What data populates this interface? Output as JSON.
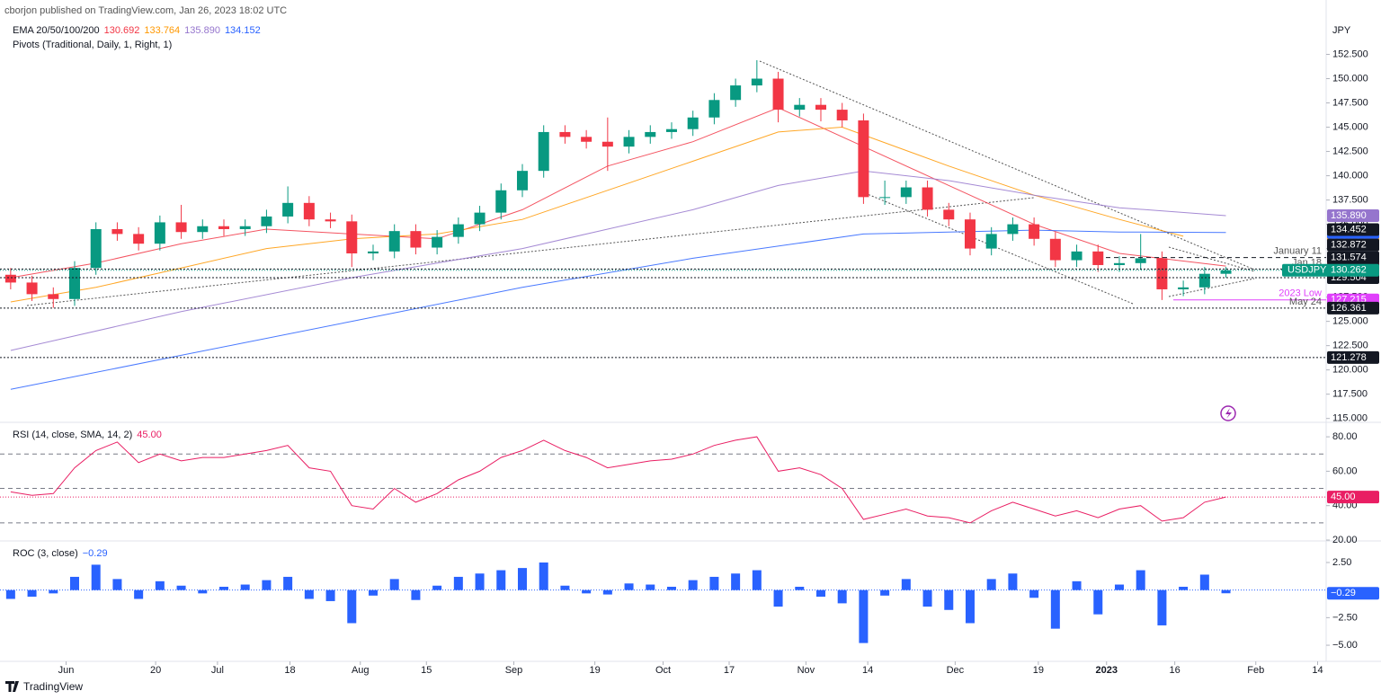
{
  "header": {
    "published": "cborjon published on TradingView.com, Jan 26, 2023 18:02 UTC",
    "currency": "JPY",
    "ema_label": "EMA 20/50/100/200",
    "pivots_label": "Pivots (Traditional, Daily, 1, Right, 1)",
    "brand": "TradingView"
  },
  "chart_data": [
    {
      "type": "candlestick",
      "xlim": [
        -0.5,
        61.7
      ],
      "ylim": [
        114.6,
        158.1
      ],
      "yticks": [
        {
          "value": 152.5,
          "label": "152.500"
        },
        {
          "value": 150,
          "label": "150.000"
        },
        {
          "value": 147.5,
          "label": "147.500"
        },
        {
          "value": 145,
          "label": "145.000"
        },
        {
          "value": 142.5,
          "label": "142.500"
        },
        {
          "value": 140,
          "label": "140.000"
        },
        {
          "value": 137.5,
          "label": "137.500"
        },
        {
          "value": 135,
          "label": "135.000"
        },
        {
          "value": 132.5,
          "label": "132.500"
        },
        {
          "value": 130,
          "label": "130.000"
        },
        {
          "value": 127.5,
          "label": "127.500"
        },
        {
          "value": 125,
          "label": "125.000"
        },
        {
          "value": 122.5,
          "label": "122.500"
        },
        {
          "value": 120,
          "label": "120.000"
        },
        {
          "value": 117.5,
          "label": "117.500"
        },
        {
          "value": 115,
          "label": "115.000"
        }
      ],
      "up_color": "#089981",
      "down_color": "#f23645",
      "open": [
        129.8,
        129.0,
        127.8,
        127.3,
        130.5,
        134.5,
        134.0,
        133.0,
        135.2,
        134.2,
        134.8,
        134.5,
        134.8,
        135.8,
        137.2,
        135.5,
        135.3,
        132.0,
        132.2,
        134.3,
        132.6,
        133.7,
        135.0,
        136.2,
        138.5,
        140.5,
        144.5,
        144.0,
        143.5,
        143.0,
        144.0,
        144.5,
        144.8,
        146.0,
        147.8,
        149.3,
        150.0,
        146.8,
        147.3,
        146.8,
        145.7,
        137.8,
        137.8,
        138.8,
        136.5,
        135.5,
        132.5,
        134.0,
        135.0,
        133.5,
        131.3,
        132.2,
        130.8,
        131.0,
        131.5,
        128.3,
        128.5,
        129.9
      ],
      "high": [
        130.5,
        129.7,
        128.5,
        131.2,
        135.2,
        135.2,
        134.7,
        135.9,
        137.0,
        135.5,
        135.5,
        135.5,
        136.5,
        138.9,
        137.9,
        136.2,
        136.0,
        132.9,
        135.0,
        135.0,
        134.4,
        135.7,
        136.9,
        139.2,
        141.2,
        145.2,
        145.2,
        144.7,
        146.0,
        144.7,
        145.2,
        145.5,
        146.7,
        148.5,
        150.0,
        151.9,
        150.7,
        148.0,
        148.0,
        147.5,
        146.4,
        139.5,
        139.5,
        139.5,
        137.2,
        136.2,
        134.7,
        135.7,
        135.7,
        134.2,
        132.9,
        132.9,
        131.7,
        134.0,
        132.2,
        129.2,
        130.6,
        130.6
      ],
      "low": [
        128.3,
        127.1,
        126.4,
        126.6,
        129.8,
        133.3,
        132.3,
        132.3,
        133.5,
        133.5,
        133.8,
        133.8,
        134.1,
        135.1,
        134.8,
        134.6,
        130.6,
        131.3,
        131.5,
        131.9,
        131.9,
        133.0,
        134.3,
        135.5,
        137.8,
        139.8,
        143.3,
        142.8,
        140.5,
        142.3,
        143.3,
        143.8,
        144.1,
        145.3,
        147.1,
        148.6,
        145.5,
        146.1,
        145.6,
        145.0,
        137.1,
        137.0,
        137.1,
        135.8,
        134.8,
        131.8,
        131.8,
        133.3,
        132.8,
        130.6,
        130.6,
        130.1,
        130.1,
        130.3,
        127.2,
        127.6,
        127.8,
        129.5
      ],
      "close": [
        129.0,
        127.8,
        127.3,
        130.5,
        134.5,
        134.0,
        133.0,
        135.2,
        134.2,
        134.8,
        134.5,
        134.8,
        135.8,
        137.2,
        135.5,
        135.3,
        132.0,
        132.2,
        134.3,
        132.6,
        133.7,
        135.0,
        136.2,
        138.5,
        140.5,
        144.5,
        144.0,
        143.5,
        143.0,
        144.0,
        144.5,
        144.8,
        146.0,
        147.8,
        149.3,
        150.0,
        146.8,
        147.3,
        146.8,
        145.7,
        137.8,
        137.8,
        138.8,
        136.5,
        135.5,
        132.5,
        134.0,
        135.0,
        133.5,
        131.3,
        132.2,
        130.8,
        131.0,
        131.5,
        128.3,
        128.5,
        129.9,
        130.262
      ],
      "series": [
        {
          "color": "#f23645",
          "x": [
            0,
            4,
            8,
            12,
            16,
            20,
            24,
            28,
            32,
            36,
            40,
            44,
            48,
            52,
            57
          ],
          "values": [
            129.5,
            131,
            133,
            134.5,
            134,
            133.5,
            136.5,
            141,
            143.5,
            147,
            143,
            139,
            135,
            132,
            130.692
          ],
          "value_label": "130.692"
        },
        {
          "color": "#ff9800",
          "x": [
            0,
            4,
            8,
            12,
            16,
            20,
            24,
            28,
            32,
            36,
            39,
            44,
            48,
            52,
            55
          ],
          "values": [
            127,
            128.5,
            130.5,
            132.5,
            133.5,
            134,
            135.5,
            138.5,
            141.5,
            144.5,
            145,
            141,
            138,
            135.5,
            133.764
          ],
          "value_label": "133.764"
        },
        {
          "color": "#9575cd",
          "x": [
            0,
            8,
            16,
            24,
            32,
            36,
            40,
            44,
            48,
            52,
            57
          ],
          "values": [
            122,
            126,
            129.5,
            132.5,
            136.5,
            139,
            140.5,
            139.5,
            138,
            136.7,
            135.89
          ],
          "value_label": "135.890"
        },
        {
          "color": "#2962ff",
          "x": [
            0,
            8,
            16,
            24,
            32,
            40,
            44,
            48,
            52,
            57
          ],
          "values": [
            118,
            121.5,
            125,
            128.5,
            131.5,
            134,
            134.2,
            134.4,
            134.2,
            134.152
          ],
          "value_label": "134.152"
        }
      ],
      "levels": [
        {
          "value": 134.452,
          "label": "134.452",
          "color": "#131722",
          "line": "none"
        },
        {
          "value": 132.872,
          "label": "132.872",
          "color": "#131722",
          "line": "none"
        },
        {
          "value": 131.574,
          "label": "131.574",
          "color": "#131722",
          "line": "dashed",
          "note": "January 11"
        },
        {
          "value": 130.391,
          "label": "130.391",
          "color": "#131722",
          "line": "dotted",
          "note": "Jan 18"
        },
        {
          "value": 129.504,
          "label": "129.504",
          "color": "#131722",
          "line": "dotted"
        },
        {
          "value": 127.215,
          "label": "127.215",
          "color": "#e040fb",
          "line": "solid",
          "note": "2023 Low"
        },
        {
          "value": 126.361,
          "label": "126.361",
          "color": "#131722",
          "line": "dotted",
          "note": "May 24"
        },
        {
          "value": 121.278,
          "label": "121.278",
          "color": "#131722",
          "line": "dotted"
        }
      ],
      "symbol": {
        "name": "USDJPY",
        "value": 130.262,
        "label": "130.262",
        "color": "#089981"
      }
    },
    {
      "type": "line",
      "title": "RSI (14, close, SMA, 14, 2)",
      "value_label": "45.00",
      "color": "#e91e63",
      "xlim": [
        -0.5,
        61.7
      ],
      "ylim": [
        20,
        85.8
      ],
      "yticks": [
        {
          "value": 80,
          "label": "80.00"
        },
        {
          "value": 60,
          "label": "60.00"
        },
        {
          "value": 40,
          "label": "40.00"
        },
        {
          "value": 20,
          "label": "20.00"
        }
      ],
      "levels": [
        70,
        50,
        30
      ],
      "values": [
        48,
        46,
        47,
        62,
        72,
        77,
        65,
        70,
        66,
        68,
        68,
        70,
        72,
        75,
        62,
        60,
        40,
        38,
        50,
        42,
        47,
        55,
        60,
        68,
        72,
        78,
        72,
        68,
        62,
        64,
        66,
        67,
        70,
        75,
        78,
        80,
        60,
        62,
        58,
        50,
        32,
        35,
        38,
        34,
        33,
        30,
        37,
        42,
        38,
        34,
        37,
        33,
        38,
        40,
        31,
        33,
        42,
        45
      ]
    },
    {
      "type": "bar",
      "title": "ROC (3, close)",
      "value_label": "−0.29",
      "color": "#2962ff",
      "xlim": [
        -0.5,
        61.7
      ],
      "ylim": [
        -6.38,
        4.29
      ],
      "yticks": [
        {
          "value": 2.5,
          "label": "2.50"
        },
        {
          "value": -2.5,
          "label": "−2.50"
        },
        {
          "value": -5,
          "label": "−5.00"
        }
      ],
      "values": [
        -0.8,
        -0.6,
        -0.3,
        1.2,
        2.3,
        1.0,
        -0.8,
        0.8,
        0.4,
        -0.3,
        0.3,
        0.5,
        0.9,
        1.2,
        -0.8,
        -1.0,
        -3.0,
        -0.5,
        1.0,
        -0.9,
        0.4,
        1.2,
        1.5,
        1.8,
        2.0,
        2.5,
        0.4,
        -0.3,
        -0.4,
        0.6,
        0.5,
        0.3,
        0.9,
        1.2,
        1.5,
        1.8,
        -1.5,
        0.3,
        -0.6,
        -1.2,
        -4.8,
        -0.5,
        1.0,
        -1.5,
        -1.8,
        -3.0,
        1.0,
        1.5,
        -0.7,
        -3.5,
        0.8,
        -2.2,
        0.5,
        1.8,
        -3.2,
        0.3,
        1.4,
        -0.29
      ],
      "xticks": [
        {
          "value": 2.6,
          "label": "Jun"
        },
        {
          "value": 6.8,
          "label": "20"
        },
        {
          "value": 9.7,
          "label": "Jul"
        },
        {
          "value": 13.1,
          "label": "18"
        },
        {
          "value": 16.4,
          "label": "Aug"
        },
        {
          "value": 19.5,
          "label": "15"
        },
        {
          "value": 23.6,
          "label": "Sep"
        },
        {
          "value": 27.4,
          "label": "19"
        },
        {
          "value": 30.6,
          "label": "Oct"
        },
        {
          "value": 33.7,
          "label": "17"
        },
        {
          "value": 37.3,
          "label": "Nov"
        },
        {
          "value": 40.2,
          "label": "14"
        },
        {
          "value": 44.3,
          "label": "Dec"
        },
        {
          "value": 48.2,
          "label": "19"
        },
        {
          "value": 51.4,
          "label": "2023"
        },
        {
          "value": 54.6,
          "label": "16"
        },
        {
          "value": 58.4,
          "label": "Feb"
        },
        {
          "value": 61.3,
          "label": "14"
        }
      ]
    }
  ]
}
